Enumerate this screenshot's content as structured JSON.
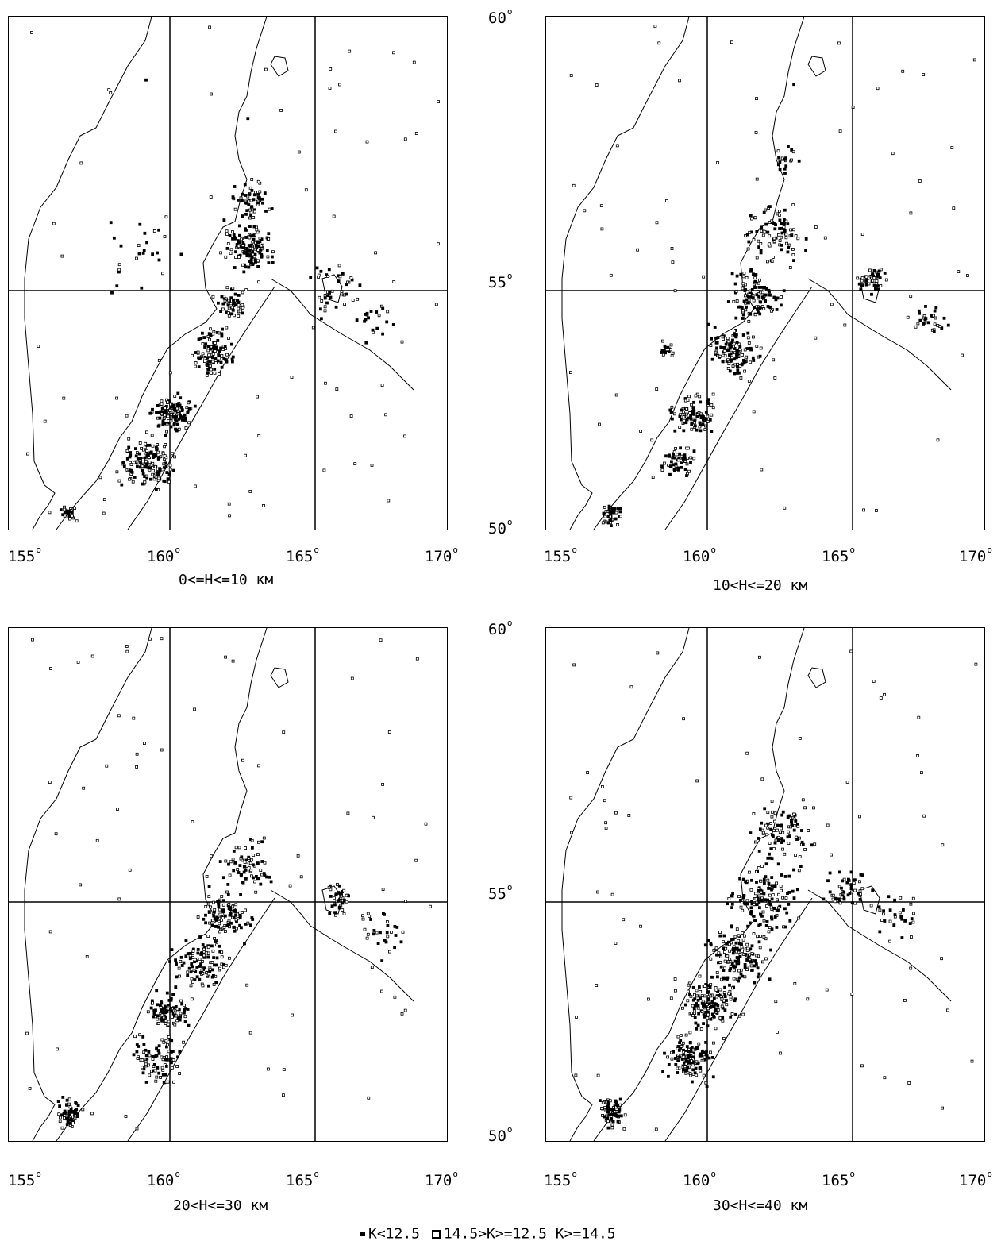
{
  "panels": [
    {
      "caption": "0<=H<=10  км"
    },
    {
      "caption": "10<H<=20  км"
    },
    {
      "caption": "20<H<=30  км"
    },
    {
      "caption": "30<H<=40  км"
    }
  ],
  "x_ticks": [
    "155",
    "160",
    "165",
    "170"
  ],
  "y_ticks": [
    "60",
    "55",
    "50"
  ],
  "degree_mark": "o",
  "legend": {
    "item1": "K<12.5",
    "item2": "14.5>K>=12.5",
    "item3": "K>=14.5"
  },
  "colors": {
    "ink": "#000000",
    "background": "#ffffff"
  }
}
